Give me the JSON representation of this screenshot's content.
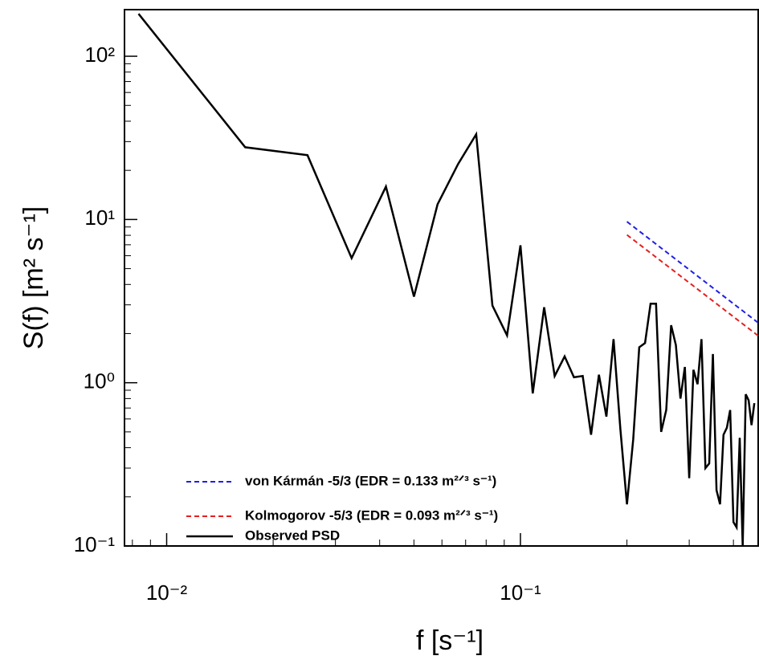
{
  "chart_data": {
    "type": "line",
    "x_label": "f  [s⁻¹]",
    "y_label": "S(f) [m² s⁻¹]",
    "xlog": true,
    "ylog": true,
    "xlim": [
      0.0076,
      0.47
    ],
    "ylim": [
      0.1,
      193
    ],
    "xticks": [
      {
        "value": 0.01,
        "label": "10⁻²"
      },
      {
        "value": 0.1,
        "label": "10⁻¹"
      }
    ],
    "xminorticks": [
      0.008,
      0.009,
      0.02,
      0.03,
      0.04,
      0.05,
      0.06,
      0.07,
      0.08,
      0.09,
      0.2,
      0.3,
      0.4
    ],
    "yticks": [
      {
        "value": 0.1,
        "label": "10⁻¹"
      },
      {
        "value": 1,
        "label": "10⁰"
      },
      {
        "value": 10,
        "label": "10¹"
      },
      {
        "value": 100,
        "label": "10²"
      }
    ],
    "yminorticks": [
      0.2,
      0.3,
      0.4,
      0.5,
      0.6,
      0.7,
      0.8,
      0.9,
      2,
      3,
      4,
      5,
      6,
      7,
      8,
      9,
      20,
      30,
      40,
      50,
      60,
      70,
      80,
      90
    ],
    "legend_position": "lower left",
    "series": [
      {
        "name": "von Kármán -5/3 (EDR = 0.133 m²ᐟ³ s⁻¹)",
        "color": "#1f1fe6",
        "dash": true,
        "x": [
          0.2,
          0.47
        ],
        "values": [
          9.7,
          2.33
        ]
      },
      {
        "name": "Kolmogorov -5/3 (EDR = 0.093 m²ᐟ³ s⁻¹)",
        "color": "#e61f1f",
        "dash": true,
        "x": [
          0.2,
          0.47
        ],
        "values": [
          8.05,
          1.94
        ]
      },
      {
        "name": "Observed PSD",
        "color": "#000000",
        "dash": false,
        "x": [
          0.00833,
          0.01667,
          0.025,
          0.03333,
          0.04167,
          0.05,
          0.05833,
          0.06667,
          0.075,
          0.08333,
          0.09167,
          0.1,
          0.10833,
          0.11667,
          0.125,
          0.13333,
          0.14167,
          0.15,
          0.15833,
          0.16667,
          0.175,
          0.18333,
          0.19167,
          0.2,
          0.20833,
          0.21667,
          0.225,
          0.23333,
          0.24167,
          0.25,
          0.25833,
          0.26667,
          0.275,
          0.28333,
          0.29167,
          0.3,
          0.30833,
          0.31667,
          0.325,
          0.33333,
          0.34167,
          0.35,
          0.35833,
          0.36667,
          0.375,
          0.38333,
          0.39167,
          0.4,
          0.40833,
          0.41667,
          0.425,
          0.43333,
          0.44167,
          0.45,
          0.45833
        ],
        "values": [
          182,
          27.7,
          24.8,
          5.8,
          15.9,
          3.37,
          12.4,
          21.9,
          33.3,
          2.97,
          1.95,
          6.95,
          0.86,
          2.9,
          1.1,
          1.45,
          1.08,
          1.1,
          0.48,
          1.12,
          0.62,
          1.85,
          0.52,
          0.18,
          0.45,
          1.65,
          1.75,
          3.05,
          3.05,
          0.5,
          0.68,
          2.25,
          1.7,
          0.8,
          1.25,
          0.26,
          1.2,
          0.98,
          1.85,
          0.3,
          0.32,
          1.5,
          0.22,
          0.18,
          0.48,
          0.53,
          0.68,
          0.14,
          0.13,
          0.46,
          0.1,
          0.85,
          0.78,
          0.55,
          0.75
        ]
      }
    ]
  }
}
